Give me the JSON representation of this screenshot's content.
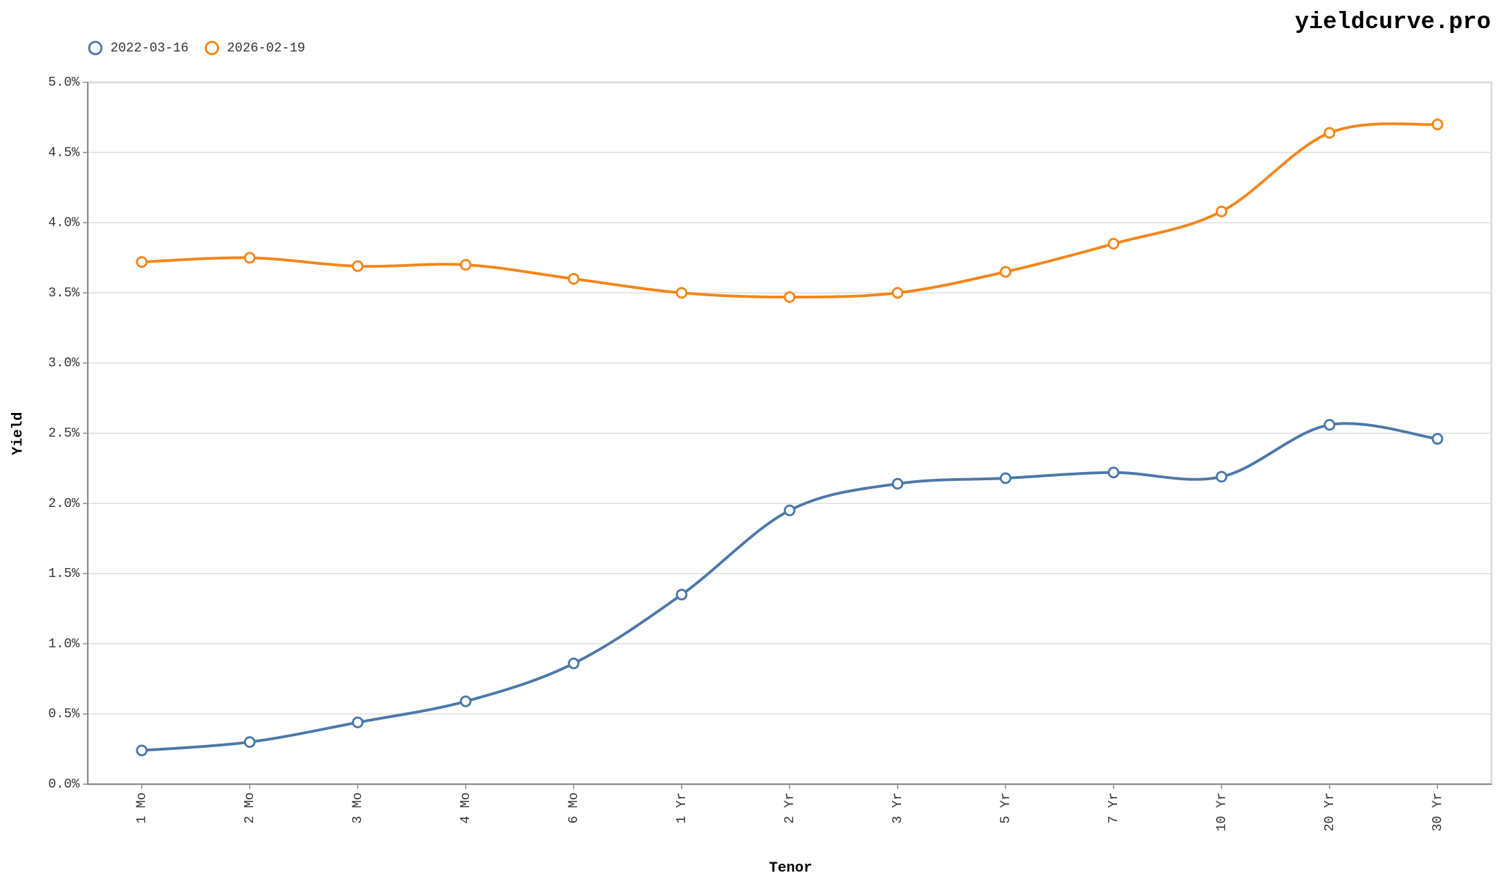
{
  "chart_data": {
    "type": "line",
    "title": "yieldcurve.pro",
    "x_label": "Tenor",
    "y_label": "Yield",
    "categories": [
      "1 Mo",
      "2 Mo",
      "3 Mo",
      "4 Mo",
      "6 Mo",
      "1 Yr",
      "2 Yr",
      "3 Yr",
      "5 Yr",
      "7 Yr",
      "10 Yr",
      "20 Yr",
      "30 Yr"
    ],
    "series": [
      {
        "name": "2022-03-16",
        "color": "#4c78a8",
        "values": [
          0.24,
          0.3,
          0.44,
          0.59,
          0.86,
          1.35,
          1.95,
          2.14,
          2.18,
          2.22,
          2.19,
          2.56,
          2.46
        ]
      },
      {
        "name": "2026-02-19",
        "color": "#f58518",
        "values": [
          3.72,
          3.75,
          3.69,
          3.7,
          3.6,
          3.5,
          3.47,
          3.5,
          3.65,
          3.85,
          4.08,
          4.64,
          4.7
        ]
      }
    ],
    "ylim": [
      0,
      5
    ],
    "yticks": [
      {
        "value": 0,
        "label": "0.0%"
      },
      {
        "value": 0.5,
        "label": "0.5%"
      },
      {
        "value": 1,
        "label": "1.0%"
      },
      {
        "value": 1.5,
        "label": "1.5%"
      },
      {
        "value": 2,
        "label": "2.0%"
      },
      {
        "value": 2.5,
        "label": "2.5%"
      },
      {
        "value": 3,
        "label": "3.0%"
      },
      {
        "value": 3.5,
        "label": "3.5%"
      },
      {
        "value": 4,
        "label": "4.0%"
      },
      {
        "value": 4.5,
        "label": "4.5%"
      },
      {
        "value": 5,
        "label": "5.0%"
      }
    ],
    "grid": true,
    "legend": "top-left"
  }
}
